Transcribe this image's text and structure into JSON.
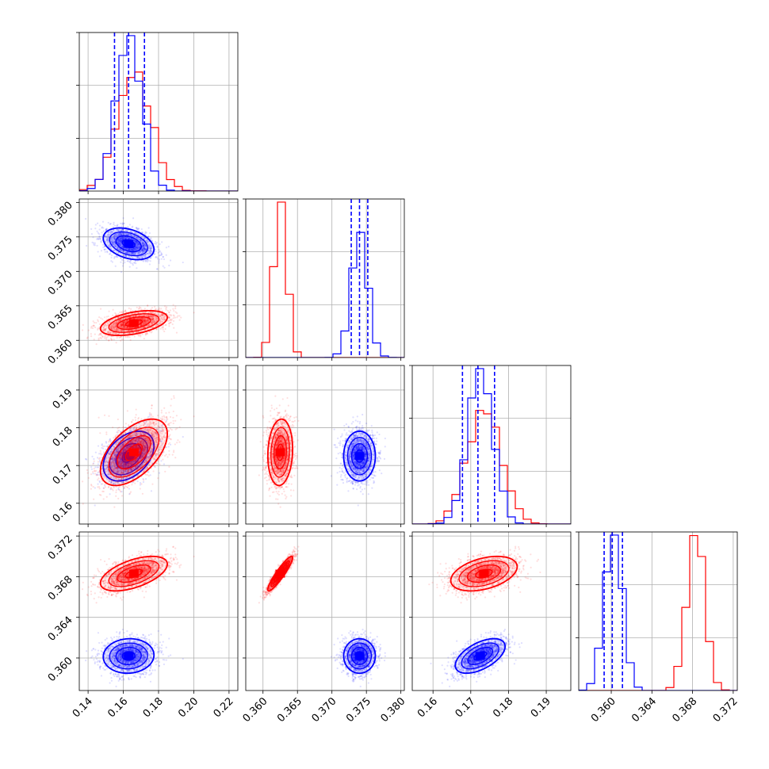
{
  "chart_data": {
    "type": "scatter",
    "variant": "corner-plot",
    "grid": true,
    "colors": {
      "series_a": "#0000ff",
      "series_b": "#ff0000"
    },
    "dimensions": [
      {
        "range": [
          0.135,
          0.225
        ],
        "ticks": [
          0.14,
          0.16,
          0.18,
          0.2,
          0.22
        ],
        "tick_labels": [
          "0.14",
          "0.16",
          "0.18",
          "0.20",
          "0.22"
        ]
      },
      {
        "range": [
          0.3575,
          0.3805
        ],
        "ticks": [
          0.36,
          0.365,
          0.37,
          0.375,
          0.38
        ],
        "tick_labels": [
          "0.360",
          "0.365",
          "0.370",
          "0.375",
          "0.380"
        ]
      },
      {
        "range": [
          0.1545,
          0.1965
        ],
        "ticks": [
          0.16,
          0.17,
          0.18,
          0.19
        ],
        "tick_labels": [
          "0.16",
          "0.17",
          "0.18",
          "0.19"
        ]
      },
      {
        "range": [
          0.3568,
          0.3724
        ],
        "ticks": [
          0.36,
          0.364,
          0.368,
          0.372
        ],
        "tick_labels": [
          "0.360",
          "0.364",
          "0.368",
          "0.372"
        ]
      }
    ],
    "series": [
      {
        "color": "#0000ff",
        "mean": [
          0.163,
          0.374,
          0.1725,
          0.3602
        ],
        "std": [
          0.0072,
          0.00115,
          0.0033,
          0.00085
        ],
        "corr": [
          [
            1,
            -0.35,
            0.4,
            0.05
          ],
          [
            -0.35,
            1,
            0.0,
            0.0
          ],
          [
            0.4,
            0.0,
            1,
            0.55
          ],
          [
            0.05,
            0.0,
            0.55,
            1
          ]
        ],
        "quantiles": [
          [
            0.155,
            0.163,
            0.172
          ],
          [
            0.3728,
            0.374,
            0.3752
          ],
          [
            0.1678,
            0.1719,
            0.1763
          ],
          [
            0.3593,
            0.3601,
            0.3611
          ]
        ]
      },
      {
        "color": "#ff0000",
        "mean": [
          0.166,
          0.3625,
          0.1735,
          0.3683
        ],
        "std": [
          0.0095,
          0.0009,
          0.0044,
          0.00085
        ],
        "corr": [
          [
            1,
            0.45,
            0.55,
            0.55
          ],
          [
            0.45,
            1,
            0.1,
            0.92
          ],
          [
            0.55,
            0.1,
            1,
            0.4
          ],
          [
            0.55,
            0.92,
            0.4,
            1
          ]
        ],
        "quantiles": null
      }
    ]
  }
}
